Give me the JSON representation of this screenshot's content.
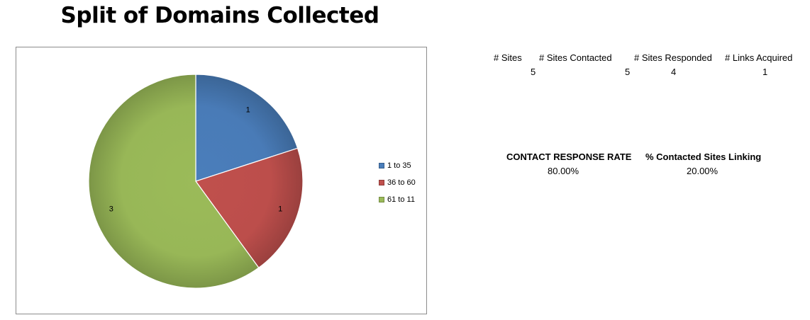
{
  "chart_data": {
    "type": "pie",
    "title": "Split of Domains Collected",
    "categories": [
      "1 to 35",
      "36 to 60",
      "61 to 11"
    ],
    "values": [
      1,
      1,
      3
    ],
    "colors": [
      "#4a7ebb",
      "#c0504d",
      "#9bbb59"
    ],
    "data_labels": [
      "1",
      "1",
      "3"
    ],
    "legend_position": "right"
  },
  "stats": {
    "headers": [
      "# Sites",
      "# Sites Contacted",
      "# Sites Responded",
      "# Links Acquired"
    ],
    "values": [
      "5",
      "5",
      "4",
      "1"
    ]
  },
  "rates": {
    "contact_response_rate_label": "CONTACT RESPONSE RATE",
    "contact_response_rate_value": "80.00%",
    "contacted_linking_label": "% Contacted Sites Linking",
    "contacted_linking_value": "20.00%"
  }
}
